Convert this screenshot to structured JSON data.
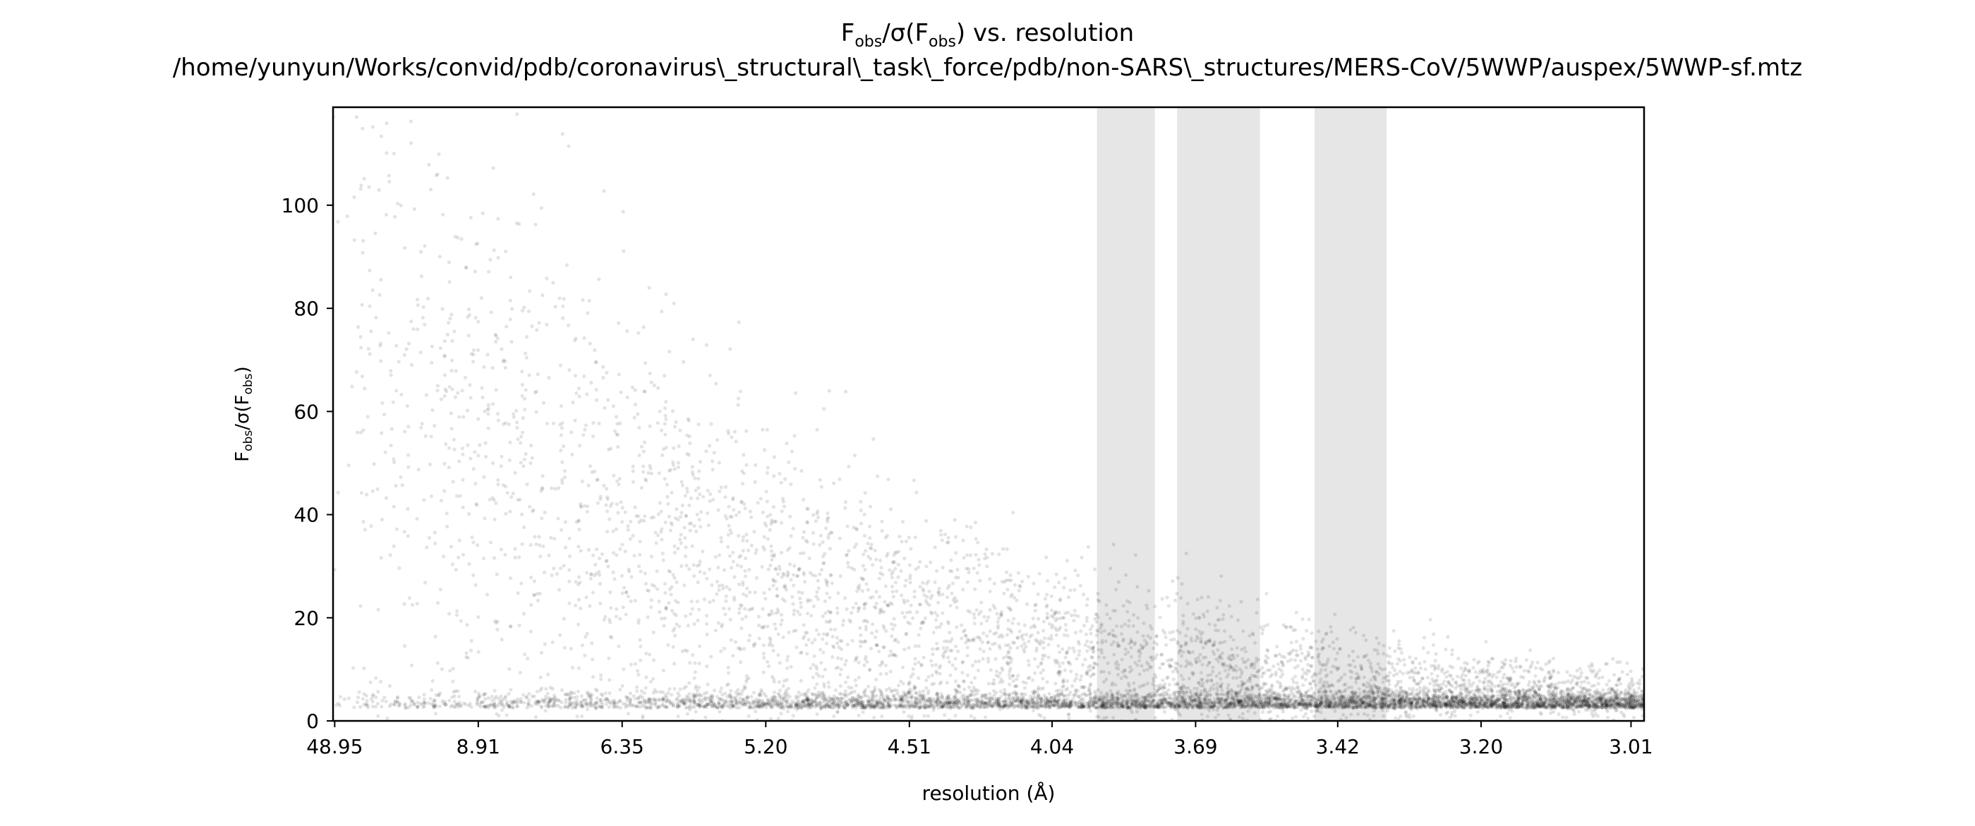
{
  "chart_data": {
    "type": "scatter",
    "title": {
      "line1_parts": [
        {
          "t": "F",
          "sub": false
        },
        {
          "t": "obs",
          "sub": true
        },
        {
          "t": "/σ(F",
          "sub": false
        },
        {
          "t": "obs",
          "sub": true
        },
        {
          "t": ") vs. resolution",
          "sub": false
        }
      ],
      "line2": "/home/yunyun/Works/convid/pdb/coronavirus\\_structural\\_task\\_force/pdb/non-SARS\\_structures/MERS-CoV/5WWP/auspex/5WWP-sf.mtz"
    },
    "xlabel": "resolution (Å)",
    "ylabel_parts": [
      {
        "t": "F",
        "sub": false
      },
      {
        "t": "obs",
        "sub": true
      },
      {
        "t": "/σ(F",
        "sub": false
      },
      {
        "t": "obs",
        "sub": true
      },
      {
        "t": ")",
        "sub": false
      }
    ],
    "x_scale": "1/d^2 (reciprocal-square resolution)",
    "x_range_resolution": [
      60.0,
      2.995
    ],
    "x_ticks": [
      "48.95",
      "8.91",
      "6.35",
      "5.20",
      "4.51",
      "4.04",
      "3.69",
      "3.42",
      "3.20",
      "3.01"
    ],
    "y_range": [
      0,
      119
    ],
    "y_ticks": [
      0,
      20,
      40,
      60,
      80,
      100
    ],
    "ice_ring_bands_resolution": [
      [
        3.92,
        3.78
      ],
      [
        3.73,
        3.56
      ],
      [
        3.46,
        3.34
      ]
    ],
    "point_color": "#000000",
    "band_color": "#e6e6e6",
    "n_points_rendered": 9000
  }
}
